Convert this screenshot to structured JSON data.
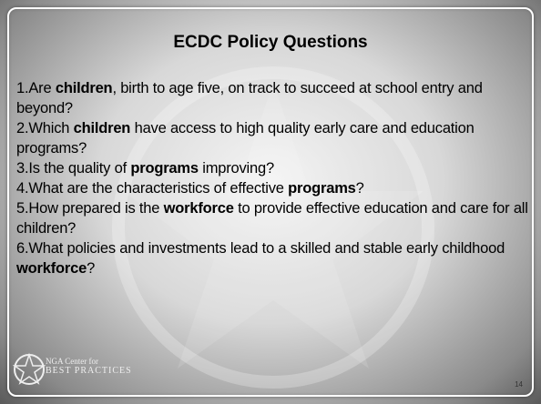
{
  "title": "ECDC Policy Questions",
  "items": [
    {
      "number": "1.",
      "segments": [
        {
          "text": "Are ",
          "bold": false
        },
        {
          "text": "children",
          "bold": true
        },
        {
          "text": ", birth to age five, on track to succeed at school entry and beyond?",
          "bold": false
        }
      ]
    },
    {
      "number": "2.",
      "segments": [
        {
          "text": "Which ",
          "bold": false
        },
        {
          "text": "children",
          "bold": true
        },
        {
          "text": " have access to high quality early care and education programs?",
          "bold": false
        }
      ]
    },
    {
      "number": "3.",
      "segments": [
        {
          "text": "Is the quality of ",
          "bold": false
        },
        {
          "text": "programs",
          "bold": true
        },
        {
          "text": " improving?",
          "bold": false
        }
      ]
    },
    {
      "number": "4.",
      "segments": [
        {
          "text": "What are the characteristics of effective ",
          "bold": false
        },
        {
          "text": "programs",
          "bold": true
        },
        {
          "text": "?",
          "bold": false
        }
      ]
    },
    {
      "number": "5.",
      "segments": [
        {
          "text": "How prepared is the ",
          "bold": false
        },
        {
          "text": "workforce",
          "bold": true
        },
        {
          "text": " to provide effective education and care for all children?",
          "bold": false
        }
      ]
    },
    {
      "number": "6.",
      "segments": [
        {
          "text": "What policies and investments lead to a skilled and stable early childhood ",
          "bold": false
        },
        {
          "text": "workforce",
          "bold": true
        },
        {
          "text": "?",
          "bold": false
        }
      ]
    }
  ],
  "footer": {
    "logo_line1": "NGA Center for",
    "logo_line2": "BEST PRACTICES",
    "page_number": "14"
  }
}
